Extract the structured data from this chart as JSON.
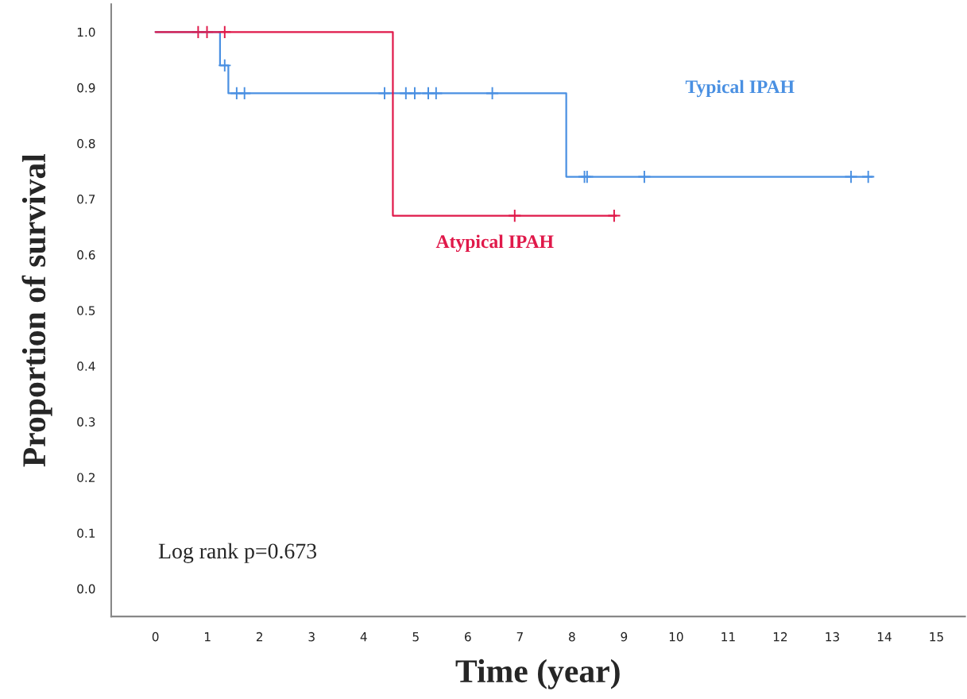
{
  "chart_data": {
    "type": "step",
    "xlabel": "Time (year)",
    "ylabel": "Proportion of survival",
    "xlim": [
      -0.85,
      15.55
    ],
    "ylim": [
      -0.05,
      1.05
    ],
    "xticks": [
      0,
      1,
      2,
      3,
      4,
      5,
      6,
      7,
      8,
      9,
      10,
      11,
      12,
      13,
      14,
      15
    ],
    "yticks": [
      {
        "value": 0,
        "label": "0.0"
      },
      {
        "value": 0.1,
        "label": "0.1"
      },
      {
        "value": 0.2,
        "label": "0.2"
      },
      {
        "value": 0.3,
        "label": "0.3"
      },
      {
        "value": 0.4,
        "label": "0.4"
      },
      {
        "value": 0.5,
        "label": "0.5"
      },
      {
        "value": 0.6,
        "label": "0.6"
      },
      {
        "value": 0.7,
        "label": "0.7"
      },
      {
        "value": 0.8,
        "label": "0.8"
      },
      {
        "value": 0.9,
        "label": "0.9"
      },
      {
        "value": 1.0,
        "label": "1.0"
      }
    ],
    "grid": false,
    "legend": false,
    "annotations": [
      "Log rank p=0.673"
    ],
    "series": [
      {
        "name": "Typical IPAH",
        "color": "#4a90e2",
        "x": [
          0,
          1.24,
          1.4,
          7.89,
          13.77
        ],
        "values": [
          1.0,
          0.94,
          0.89,
          0.74,
          0.74
        ]
      },
      {
        "name": "Atypical IPAH",
        "color": "#e0194a",
        "x": [
          0,
          4.56,
          8.85
        ],
        "values": [
          1.0,
          0.67,
          0.67
        ]
      },
      {
        "type": "scatter",
        "marker": "cross",
        "color": "#4a90e2",
        "x": [
          1.33,
          1.56,
          1.71,
          4.4,
          4.81,
          4.98,
          5.24,
          5.39,
          6.47,
          8.24,
          8.29,
          9.39,
          13.36,
          13.69
        ],
        "values": [
          0.94,
          0.89,
          0.89,
          0.89,
          0.89,
          0.89,
          0.89,
          0.89,
          0.89,
          0.74,
          0.74,
          0.74,
          0.74,
          0.74
        ]
      },
      {
        "type": "scatter",
        "marker": "cross",
        "color": "#e0194a",
        "x": [
          0.82,
          0.99,
          1.33,
          6.9,
          8.81
        ],
        "values": [
          1.0,
          1.0,
          1.0,
          0.67,
          0.67
        ]
      }
    ]
  }
}
